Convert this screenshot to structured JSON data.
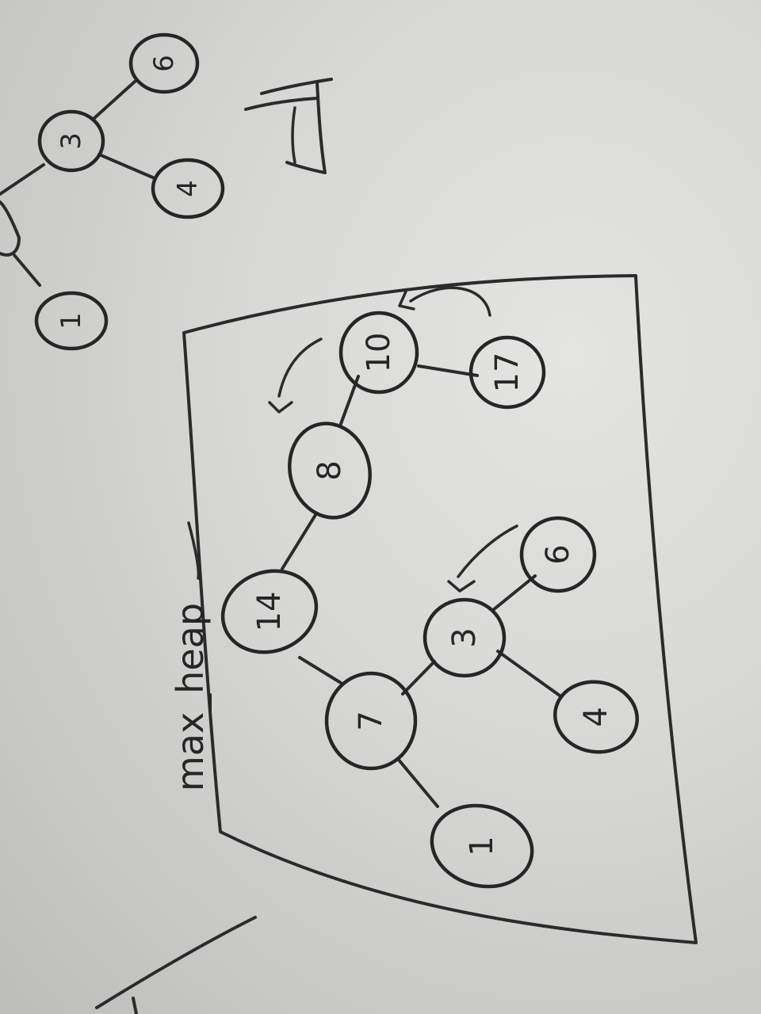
{
  "diagram": {
    "title": "max_heap",
    "corner_mark": "7",
    "main_tree": {
      "nodes": {
        "n14": "14",
        "n8": "8",
        "n10": "10",
        "n17": "17",
        "n7": "7",
        "n3": "3",
        "n6": "6",
        "n4": "4",
        "n1": "1"
      }
    },
    "partial_tree": {
      "nodes": {
        "p3": "3",
        "p6": "6",
        "p4": "4",
        "p1": "1"
      }
    }
  }
}
